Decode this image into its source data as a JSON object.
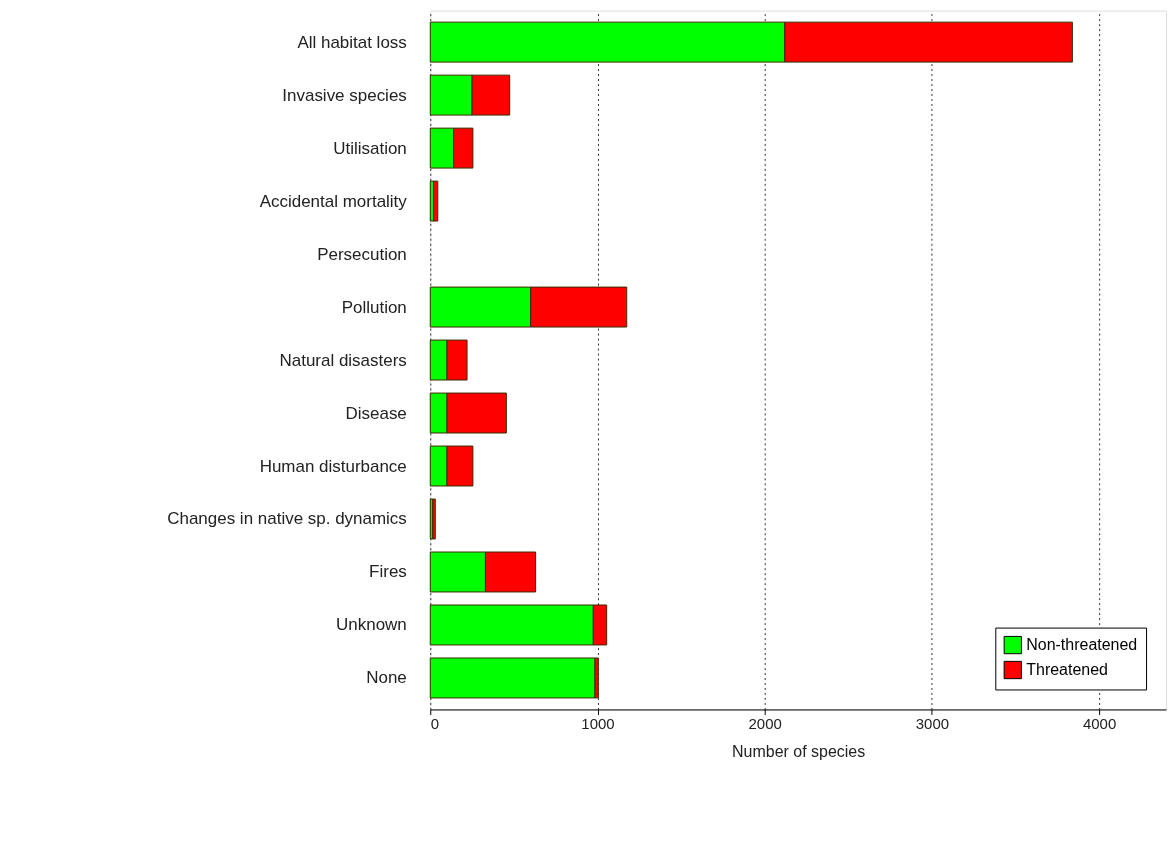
{
  "chart_data": {
    "type": "bar",
    "orientation": "horizontal",
    "stacked": true,
    "xlabel": "Number of species",
    "categories": [
      "All habitat loss",
      "Invasive species",
      "Utilisation",
      "Accidental mortality",
      "Persecution",
      "Pollution",
      "Natural disasters",
      "Disease",
      "Human disturbance",
      "Changes in native sp. dynamics",
      "Fires",
      "Unknown",
      "None"
    ],
    "series": [
      {
        "name": "Non-threatened",
        "color": "#00ff00",
        "values": [
          2120,
          250,
          140,
          20,
          null,
          600,
          100,
          100,
          100,
          15,
          330,
          975,
          985
        ]
      },
      {
        "name": "Threatened",
        "color": "#ff0000",
        "values": [
          1720,
          225,
          115,
          25,
          null,
          575,
          120,
          355,
          155,
          15,
          300,
          80,
          20
        ]
      }
    ],
    "xlim": [
      0,
      4400
    ],
    "xticks": [
      0,
      1000,
      2000,
      3000,
      4000
    ],
    "grid": "x",
    "legend": "bottom right"
  }
}
